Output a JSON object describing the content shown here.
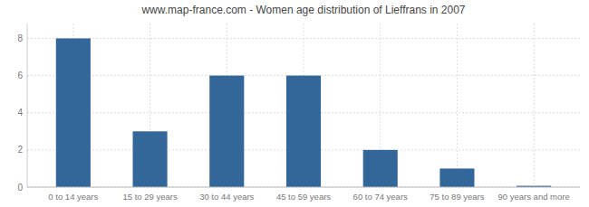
{
  "chart_data": {
    "type": "bar",
    "title": "www.map-france.com - Women age distribution of Lieffrans in 2007",
    "categories": [
      "0 to 14 years",
      "15 to 29 years",
      "30 to 44 years",
      "45 to 59 years",
      "60 to 74 years",
      "75 to 89 years",
      "90 years and more"
    ],
    "values": [
      8,
      3,
      6,
      6,
      2,
      1,
      0.07
    ],
    "color": "#336699",
    "ylim": [
      0,
      8.8
    ],
    "yticks": [
      0,
      2,
      4,
      6,
      8
    ],
    "grid": true
  }
}
